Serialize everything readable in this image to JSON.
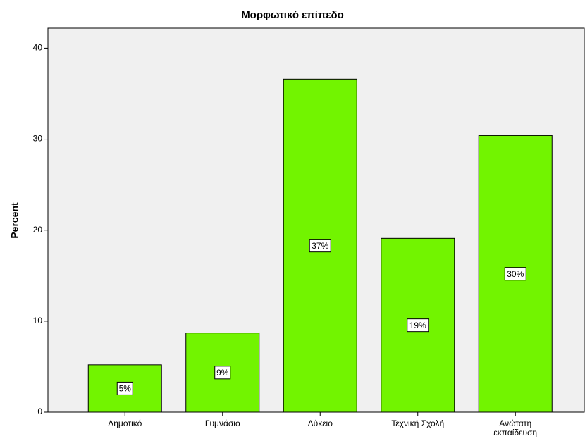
{
  "chart_data": {
    "type": "bar",
    "title": "Μορφωτικό επίπεδο",
    "y_label": "Percent",
    "categories": [
      "Δημοτικό",
      "Γυμνάσιο",
      "Λύκειο",
      "Τεχνική Σχολή",
      "Ανώτατη εκπαίδευση"
    ],
    "values": [
      5.2,
      8.7,
      36.6,
      19.1,
      30.4
    ],
    "value_labels": [
      "5%",
      "9%",
      "37%",
      "19%",
      "30%"
    ],
    "color": "#72f400",
    "ylim": [
      0,
      42.2
    ],
    "yticks": [
      0,
      10,
      20,
      30,
      40
    ],
    "grid": false
  }
}
